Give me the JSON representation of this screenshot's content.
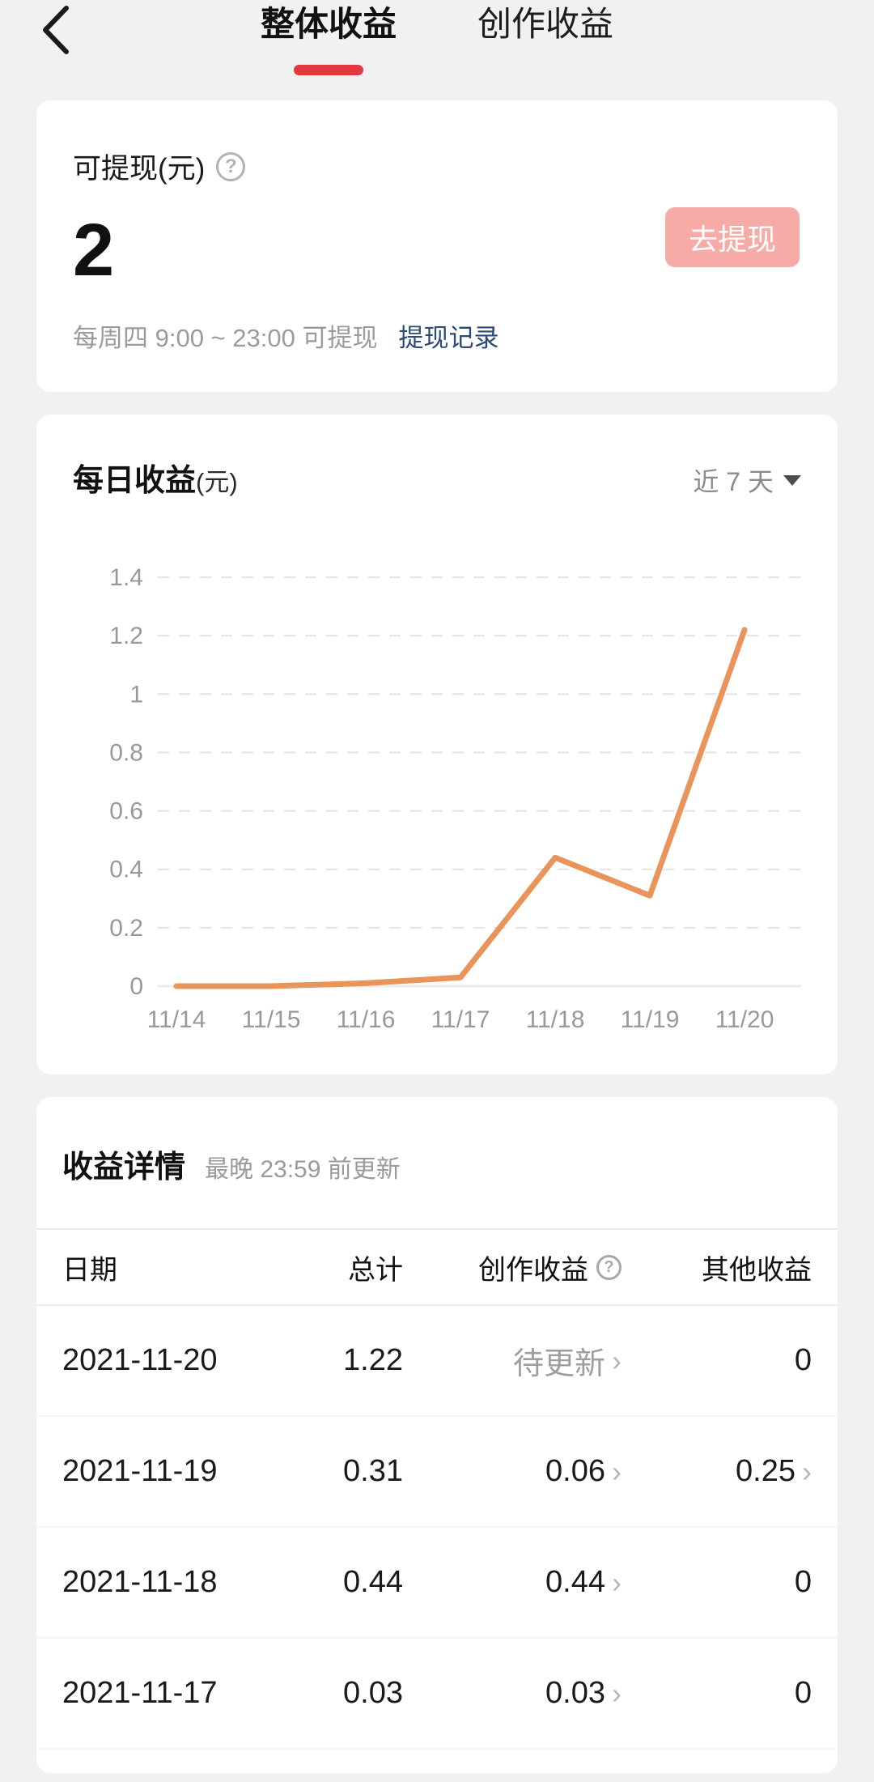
{
  "glyphs": {
    "chevron": "›",
    "question": "?"
  },
  "colors": {
    "accent_red": "#e2383f",
    "button_pink": "#f7aba7",
    "link_blue": "#2b4b73",
    "line_orange": "#e8945a",
    "page_bg": "#f1f1f2"
  },
  "header": {
    "tabs": [
      {
        "label": "整体收益",
        "active": true
      },
      {
        "label": "创作收益",
        "active": false
      }
    ]
  },
  "withdraw_card": {
    "label": "可提现(元)",
    "amount": "2",
    "button_label": "去提现",
    "schedule_text": "每周四 9:00 ~ 23:00 可提现",
    "link_label": "提现记录"
  },
  "chart_card": {
    "title": "每日收益",
    "title_unit": "(元)",
    "range_label": "近 7 天"
  },
  "chart_data": {
    "type": "line",
    "title": "每日收益(元)",
    "categories": [
      "11/14",
      "11/15",
      "11/16",
      "11/17",
      "11/18",
      "11/19",
      "11/20"
    ],
    "values": [
      0,
      0,
      0.01,
      0.03,
      0.44,
      0.31,
      1.22
    ],
    "ylim": [
      0,
      1.4
    ],
    "ytick_step": 0.2,
    "line_color": "#e8945a",
    "grid": "dashed horizontal",
    "legend": "none",
    "xlabel": "",
    "ylabel": ""
  },
  "details_card": {
    "title": "收益详情",
    "subtitle": "最晚 23:59 前更新",
    "columns": {
      "date": "日期",
      "total": "总计",
      "creation": "创作收益",
      "other": "其他收益"
    },
    "rows": [
      {
        "date": "2021-11-20",
        "total": "1.22",
        "creation": "待更新",
        "other": "0"
      },
      {
        "date": "2021-11-19",
        "total": "0.31",
        "creation": "0.06",
        "other": "0.25"
      },
      {
        "date": "2021-11-18",
        "total": "0.44",
        "creation": "0.44",
        "other": "0"
      },
      {
        "date": "2021-11-17",
        "total": "0.03",
        "creation": "0.03",
        "other": "0"
      }
    ]
  }
}
